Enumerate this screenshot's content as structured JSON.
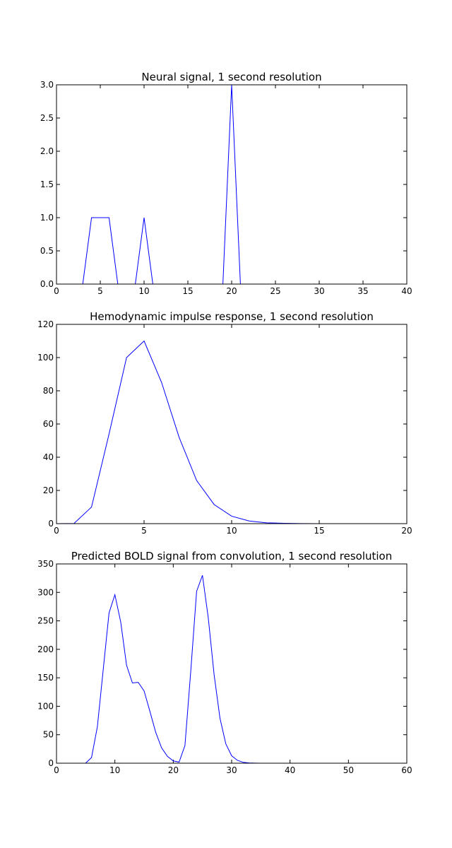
{
  "chart_data": [
    {
      "type": "line",
      "title": "Neural signal, 1 second resolution",
      "xlabel": "",
      "ylabel": "",
      "xlim": [
        0,
        40
      ],
      "ylim": [
        0,
        3.0
      ],
      "xticks": [
        0,
        5,
        10,
        15,
        20,
        25,
        30,
        35,
        40
      ],
      "yticks": [
        0.0,
        0.5,
        1.0,
        1.5,
        2.0,
        2.5,
        3.0
      ],
      "xtick_labels": [
        "0",
        "5",
        "10",
        "15",
        "20",
        "25",
        "30",
        "35",
        "40"
      ],
      "ytick_labels": [
        "0.0",
        "0.5",
        "1.0",
        "1.5",
        "2.0",
        "2.5",
        "3.0"
      ],
      "grid": false,
      "line_color": "#0000ff",
      "series": [
        {
          "x": [
            0,
            1,
            2,
            3,
            4,
            5,
            6,
            7,
            8,
            9,
            10,
            11,
            12,
            13,
            14,
            15,
            16,
            17,
            18,
            19,
            20,
            21,
            22,
            23,
            24,
            25,
            26,
            27,
            28,
            29,
            30,
            31,
            32,
            33,
            34,
            35,
            36,
            37,
            38,
            39
          ],
          "values": [
            0,
            0,
            0,
            0,
            1,
            1,
            1,
            0,
            0,
            0,
            1,
            0,
            0,
            0,
            0,
            0,
            0,
            0,
            0,
            0,
            3,
            0,
            0,
            0,
            0,
            0,
            0,
            0,
            0,
            0,
            0,
            0,
            0,
            0,
            0,
            0,
            0,
            0,
            0,
            0
          ]
        }
      ]
    },
    {
      "type": "line",
      "title": "Hemodynamic impulse response, 1 second resolution",
      "xlabel": "",
      "ylabel": "",
      "xlim": [
        0,
        20
      ],
      "ylim": [
        0,
        120
      ],
      "xticks": [
        0,
        5,
        10,
        15,
        20
      ],
      "yticks": [
        0,
        20,
        40,
        60,
        80,
        100,
        120
      ],
      "xtick_labels": [
        "0",
        "5",
        "10",
        "15",
        "20"
      ],
      "ytick_labels": [
        "0",
        "20",
        "40",
        "60",
        "80",
        "100",
        "120"
      ],
      "grid": false,
      "line_color": "#0000ff",
      "series": [
        {
          "x": [
            0,
            1,
            2,
            3,
            4,
            5,
            6,
            7,
            8,
            9,
            10,
            11,
            12,
            13,
            14,
            15,
            16,
            17,
            18,
            19
          ],
          "values": [
            0,
            0.1,
            10,
            54,
            100,
            110,
            85,
            52,
            26,
            11.5,
            4.5,
            1.6,
            0.5,
            0.2,
            0.05,
            0.02,
            0,
            0,
            0,
            0
          ]
        }
      ]
    },
    {
      "type": "line",
      "title": "Predicted BOLD signal from convolution, 1 second resolution",
      "xlabel": "",
      "ylabel": "",
      "xlim": [
        0,
        60
      ],
      "ylim": [
        0,
        350
      ],
      "xticks": [
        0,
        10,
        20,
        30,
        40,
        50,
        60
      ],
      "yticks": [
        0,
        50,
        100,
        150,
        200,
        250,
        300,
        350
      ],
      "xtick_labels": [
        "0",
        "10",
        "20",
        "30",
        "40",
        "50",
        "60"
      ],
      "ytick_labels": [
        "0",
        "50",
        "100",
        "150",
        "200",
        "250",
        "300",
        "350"
      ],
      "grid": false,
      "line_color": "#0000ff",
      "series": [
        {
          "x": [
            0,
            1,
            2,
            3,
            4,
            5,
            6,
            7,
            8,
            9,
            10,
            11,
            12,
            13,
            14,
            15,
            16,
            17,
            18,
            19,
            20,
            21,
            22,
            23,
            24,
            25,
            26,
            27,
            28,
            29,
            30,
            31,
            32,
            33,
            34,
            35,
            36,
            37,
            38,
            39,
            40,
            41,
            42,
            43,
            44,
            45,
            46,
            47,
            48,
            49,
            50,
            51,
            52,
            53,
            54,
            55,
            56,
            57,
            58
          ],
          "values": [
            0,
            0,
            0,
            0,
            0,
            0.1,
            10,
            64,
            164,
            264,
            296,
            248,
            172,
            141,
            142,
            127,
            91,
            54,
            27,
            12,
            4,
            2,
            31,
            162,
            302,
            330,
            255,
            155,
            79,
            34,
            13,
            5,
            1.5,
            0.5,
            0.2,
            0,
            0,
            0,
            0,
            0,
            0,
            0,
            0,
            0,
            0,
            0,
            0,
            0,
            0,
            0,
            0,
            0,
            0,
            0,
            0,
            0,
            0,
            0,
            0
          ]
        }
      ]
    }
  ]
}
